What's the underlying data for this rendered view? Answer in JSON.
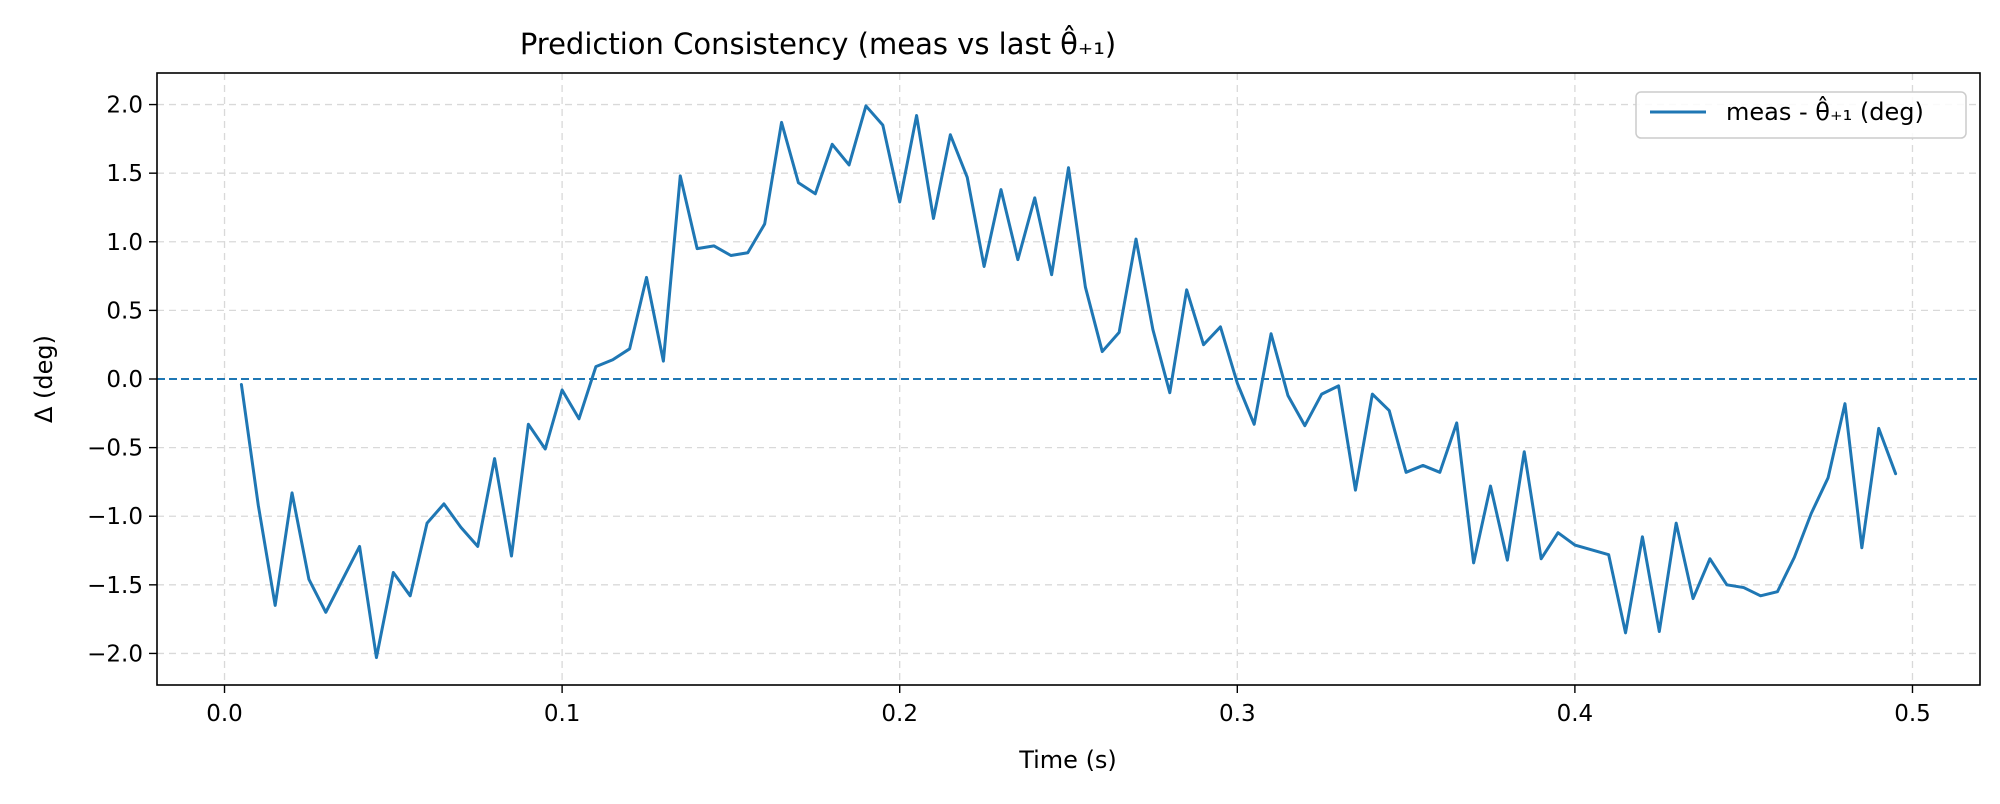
{
  "chart_data": {
    "type": "line",
    "title": "Prediction Consistency (meas vs last θ̂₊₁)",
    "xlabel": "Time (s)",
    "ylabel": "Δ (deg)",
    "xlim": [
      -0.02,
      0.52
    ],
    "ylim": [
      -2.23,
      2.23
    ],
    "xticks": [
      0.0,
      0.1,
      0.2,
      0.3,
      0.4,
      0.5
    ],
    "xtick_labels": [
      "0.0",
      "0.1",
      "0.2",
      "0.3",
      "0.4",
      "0.5"
    ],
    "yticks": [
      -2.0,
      -1.5,
      -1.0,
      -0.5,
      0.0,
      0.5,
      1.0,
      1.5,
      2.0
    ],
    "ytick_labels": [
      "−2.0",
      "−1.5",
      "−1.0",
      "−0.5",
      "0.0",
      "0.5",
      "1.0",
      "1.5",
      "2.0"
    ],
    "grid": true,
    "legend_position": "top-right",
    "reference_line": {
      "y": 0.0,
      "style": "dashed"
    },
    "colors": {
      "series": "#1f77b4",
      "grid": "#d9d9d9",
      "axes": "#000000"
    },
    "series": [
      {
        "name": "meas - θ̂₊₁ (deg)",
        "x": [
          0.005,
          0.01,
          0.015,
          0.02,
          0.025,
          0.03,
          0.035,
          0.04,
          0.045,
          0.05,
          0.055,
          0.06,
          0.065,
          0.07,
          0.075,
          0.08,
          0.085,
          0.09,
          0.095,
          0.1,
          0.105,
          0.11,
          0.115,
          0.12,
          0.125,
          0.13,
          0.135,
          0.14,
          0.145,
          0.15,
          0.155,
          0.16,
          0.165,
          0.17,
          0.175,
          0.18,
          0.185,
          0.19,
          0.195,
          0.2,
          0.205,
          0.21,
          0.215,
          0.22,
          0.225,
          0.23,
          0.235,
          0.24,
          0.245,
          0.25,
          0.255,
          0.26,
          0.265,
          0.27,
          0.275,
          0.28,
          0.285,
          0.29,
          0.295,
          0.3,
          0.305,
          0.31,
          0.315,
          0.32,
          0.325,
          0.33,
          0.335,
          0.34,
          0.345,
          0.35,
          0.355,
          0.36,
          0.365,
          0.37,
          0.375,
          0.38,
          0.385,
          0.39,
          0.395,
          0.4,
          0.41,
          0.415,
          0.42,
          0.425,
          0.43,
          0.435,
          0.44,
          0.445,
          0.45,
          0.455,
          0.46,
          0.465,
          0.47,
          0.475,
          0.48,
          0.485,
          0.49,
          0.495
        ],
        "y": [
          -0.04,
          -0.92,
          -1.65,
          -0.83,
          -1.46,
          -1.7,
          -1.46,
          -1.22,
          -2.03,
          -1.41,
          -1.58,
          -1.05,
          -0.91,
          -1.08,
          -1.22,
          -0.58,
          -1.29,
          -0.33,
          -0.51,
          -0.08,
          -0.29,
          0.09,
          0.14,
          0.22,
          0.74,
          0.13,
          1.48,
          0.95,
          0.97,
          0.9,
          0.92,
          1.13,
          1.87,
          1.43,
          1.35,
          1.71,
          1.56,
          1.99,
          1.85,
          1.29,
          1.92,
          1.17,
          1.78,
          1.47,
          0.82,
          1.38,
          0.87,
          1.32,
          0.76,
          1.54,
          0.67,
          0.2,
          0.34,
          1.02,
          0.36,
          -0.1,
          0.65,
          0.25,
          0.38,
          -0.03,
          -0.33,
          0.33,
          -0.12,
          -0.34,
          -0.11,
          -0.05,
          -0.81,
          -0.11,
          -0.23,
          -0.68,
          -0.63,
          -0.68,
          -0.32,
          -1.34,
          -0.78,
          -1.32,
          -0.53,
          -1.31,
          -1.12,
          -1.21,
          -1.28,
          -1.85,
          -1.15,
          -1.84,
          -1.05,
          -1.6,
          -1.31,
          -1.5,
          -1.52,
          -1.58,
          -1.55,
          -1.3,
          -0.98,
          -0.72,
          -0.18,
          -1.23,
          -0.36,
          -0.69
        ]
      }
    ]
  }
}
